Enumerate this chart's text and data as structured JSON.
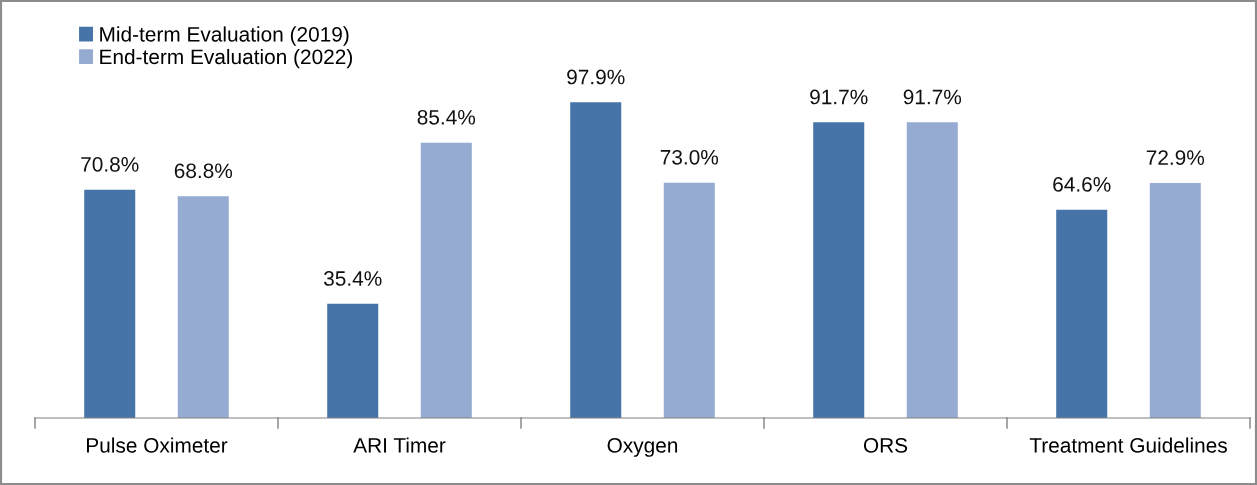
{
  "chart_data": {
    "type": "bar",
    "categories": [
      "Pulse Oximeter",
      "ARI Timer",
      "Oxygen",
      "ORS",
      "Treatment Guidelines"
    ],
    "series": [
      {
        "name": "Mid-term Evaluation (2019)",
        "color": "#4674a8",
        "values": [
          70.8,
          35.4,
          97.9,
          91.7,
          64.6
        ],
        "value_labels": [
          "70.8%",
          "35.4%",
          "97.9%",
          "91.7%",
          "64.6%"
        ]
      },
      {
        "name": "End-term Evaluation (2022)",
        "color": "#95abd2",
        "values": [
          68.8,
          85.4,
          73.0,
          91.7,
          72.9
        ],
        "value_labels": [
          "68.8%",
          "85.4%",
          "73.0%",
          "91.7%",
          "72.9%"
        ]
      }
    ],
    "legend": "top left",
    "grid": false,
    "tick_labels": "x"
  }
}
